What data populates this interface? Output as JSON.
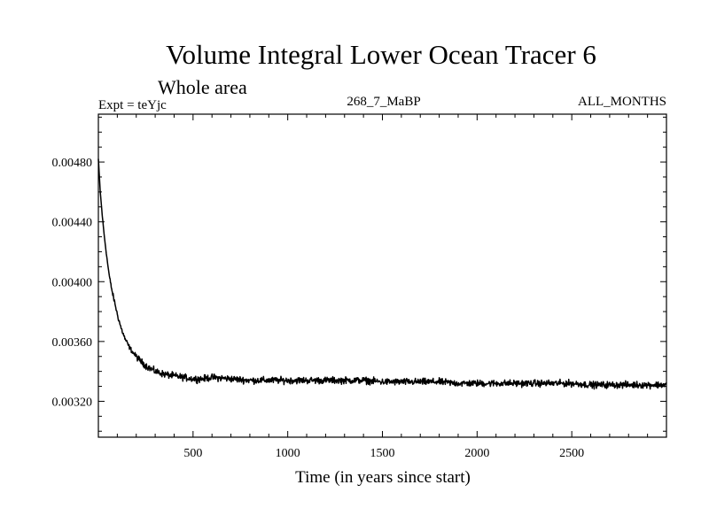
{
  "chart_data": {
    "type": "line",
    "title": "Volume Integral Lower Ocean Tracer 6",
    "subtitle": "Whole area",
    "header_left": "Expt = teYjc",
    "header_center": "268_7_MaBP",
    "header_right": "ALL_MONTHS",
    "xlabel": "Time (in years since start)",
    "ylabel": "",
    "xlim": [
      0,
      3000
    ],
    "ylim": [
      0.00296,
      0.00512
    ],
    "x_ticks": [
      500,
      1000,
      1500,
      2000,
      2500
    ],
    "x_tick_labels": [
      "500",
      "1000",
      "1500",
      "2000",
      "2500"
    ],
    "y_ticks": [
      0.0032,
      0.0036,
      0.004,
      0.0044,
      0.0048
    ],
    "y_tick_labels": [
      "0.00320",
      "0.00360",
      "0.00400",
      "0.00440",
      "0.00480"
    ],
    "series": [
      {
        "name": "Volume Integral Lower Ocean Tracer 6",
        "color": "#000000",
        "x": [
          0,
          10,
          20,
          30,
          40,
          50,
          60,
          75,
          90,
          100,
          120,
          140,
          160,
          180,
          200,
          230,
          260,
          300,
          350,
          400,
          450,
          500,
          550,
          600,
          700,
          800,
          900,
          1000,
          1100,
          1200,
          1300,
          1400,
          1500,
          1600,
          1700,
          1800,
          1900,
          2000,
          2100,
          2200,
          2300,
          2400,
          2500,
          2600,
          2700,
          2800,
          2900,
          3000
        ],
        "values": [
          0.00482,
          0.0046,
          0.00445,
          0.00432,
          0.00421,
          0.00411,
          0.00402,
          0.00392,
          0.00384,
          0.00378,
          0.00369,
          0.00362,
          0.00357,
          0.00353,
          0.0035,
          0.00346,
          0.00343,
          0.0034,
          0.00338,
          0.00337,
          0.00336,
          0.00335,
          0.00335,
          0.00336,
          0.00335,
          0.00334,
          0.00334,
          0.00334,
          0.00334,
          0.00334,
          0.00334,
          0.00334,
          0.00333,
          0.00333,
          0.00333,
          0.00333,
          0.00332,
          0.00332,
          0.00332,
          0.00332,
          0.00332,
          0.00332,
          0.00332,
          0.00331,
          0.00331,
          0.00331,
          0.00331,
          0.00331
        ],
        "noise_amplitude": 6e-05
      }
    ]
  }
}
